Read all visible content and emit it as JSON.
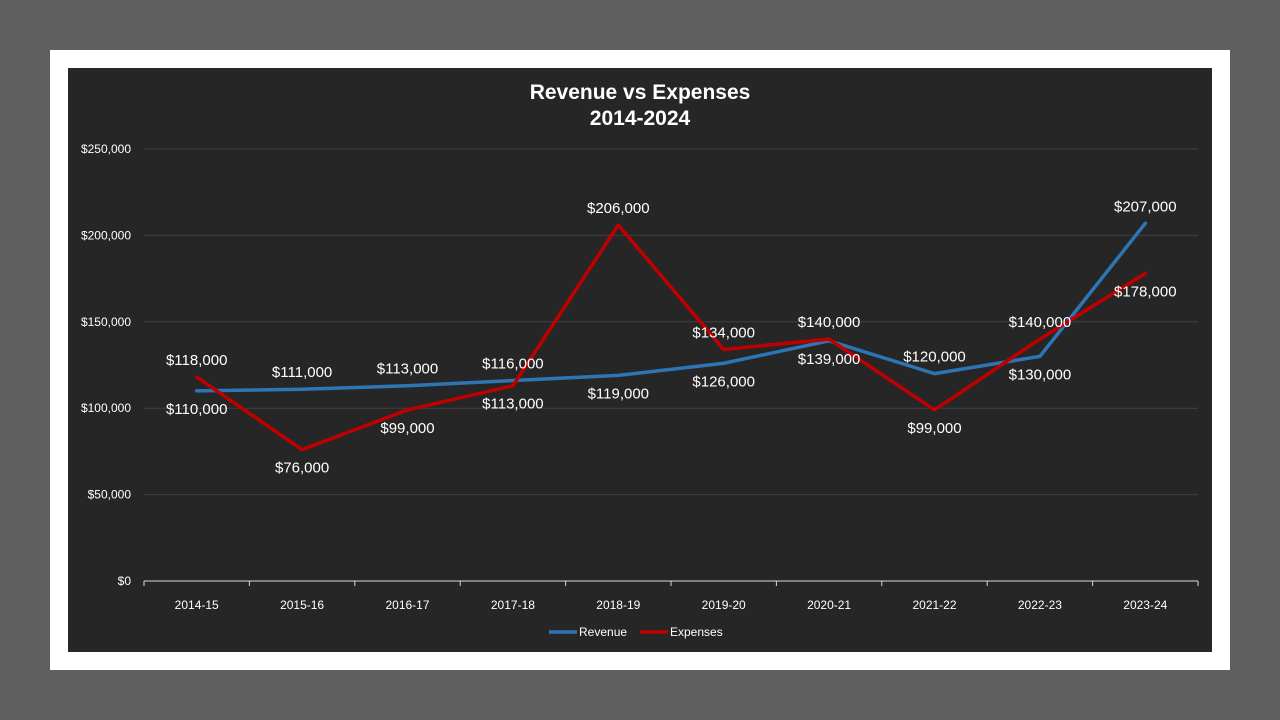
{
  "colors": {
    "outer_background": "#5f5f5f",
    "frame": "#ffffff",
    "plot_background": "#262626",
    "gridline": "#404040",
    "axis_text": "#ffffff",
    "revenue": "#2e75b6",
    "expenses": "#c00000"
  },
  "chart_data": {
    "type": "line",
    "title": "Revenue vs Expenses",
    "subtitle": "2014-2024",
    "xlabel": "",
    "ylabel": "",
    "categories": [
      "2014-15",
      "2015-16",
      "2016-17",
      "2017-18",
      "2018-19",
      "2019-20",
      "2020-21",
      "2021-22",
      "2022-23",
      "2023-24"
    ],
    "ylim": [
      0,
      250000
    ],
    "yticks": [
      0,
      50000,
      100000,
      150000,
      200000,
      250000
    ],
    "ytick_labels": [
      "$0",
      "$50,000",
      "$100,000",
      "$150,000",
      "$200,000",
      "$250,000"
    ],
    "grid": true,
    "legend": "bottom",
    "series": [
      {
        "name": "Revenue",
        "color": "#2e75b6",
        "values": [
          110000,
          111000,
          113000,
          116000,
          119000,
          126000,
          139000,
          120000,
          130000,
          207000
        ],
        "labels": [
          "$110,000",
          "$111,000",
          "$113,000",
          "$116,000",
          "$119,000",
          "$126,000",
          "$139,000",
          "$120,000",
          "$130,000",
          "$207,000"
        ]
      },
      {
        "name": "Expenses",
        "color": "#c00000",
        "values": [
          118000,
          76000,
          99000,
          113000,
          206000,
          134000,
          140000,
          99000,
          140000,
          178000
        ],
        "labels": [
          "$118,000",
          "$76,000",
          "$99,000",
          "$113,000",
          "$206,000",
          "$134,000",
          "$140,000",
          "$99,000",
          "$140,000",
          "$178,000"
        ]
      }
    ]
  }
}
